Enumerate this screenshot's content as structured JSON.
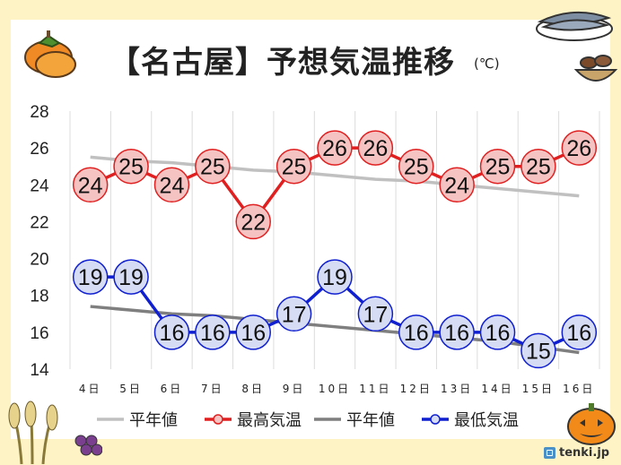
{
  "title": "【名古屋】予想気温推移",
  "unit": "(℃)",
  "brand": "tenki.jp",
  "colors": {
    "background": "#fdf3c4",
    "high": "#e02020",
    "high_fill": "#f6c3c3",
    "low": "#1020d0",
    "low_fill": "#d6dcf3",
    "normal_high": "#c0c0c0",
    "normal_low": "#7f7f7f"
  },
  "chart_data": {
    "type": "line",
    "categories": [
      "4日",
      "5日",
      "6日",
      "7日",
      "8日",
      "9日",
      "10日",
      "11日",
      "12日",
      "13日",
      "14日",
      "15日",
      "16日"
    ],
    "ylim": [
      14,
      28
    ],
    "yticks": [
      14,
      16,
      18,
      20,
      22,
      24,
      26,
      28
    ],
    "grid": true,
    "legend_position": "bottom",
    "series": [
      {
        "name": "平年値",
        "style": "line",
        "values": [
          25.5,
          25.3,
          25.2,
          25.0,
          24.8,
          24.7,
          24.5,
          24.3,
          24.2,
          24.0,
          23.8,
          23.6,
          23.4
        ]
      },
      {
        "name": "最高気温",
        "style": "marker-line",
        "values": [
          24,
          25,
          24,
          25,
          22,
          25,
          26,
          26,
          25,
          24,
          25,
          25,
          26
        ]
      },
      {
        "name": "平年値",
        "style": "line",
        "values": [
          17.4,
          17.2,
          17.0,
          16.9,
          16.7,
          16.5,
          16.3,
          16.1,
          15.9,
          15.7,
          15.5,
          15.2,
          14.9
        ]
      },
      {
        "name": "最低気温",
        "style": "marker-line",
        "values": [
          19,
          19,
          16,
          16,
          16,
          17,
          19,
          17,
          16,
          16,
          16,
          15,
          16
        ]
      }
    ]
  }
}
